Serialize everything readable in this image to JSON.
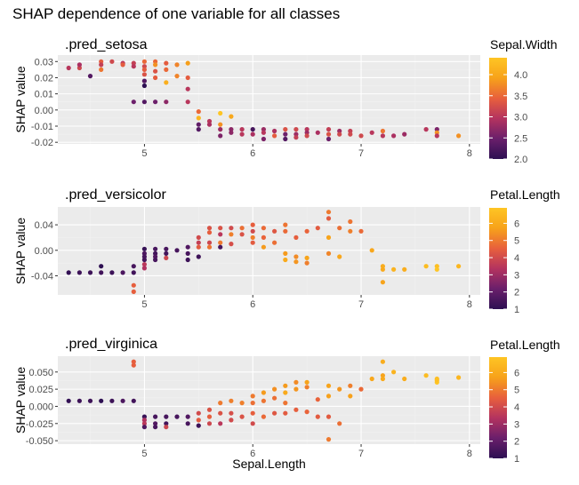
{
  "title": "SHAP dependence of one variable for all classes",
  "palette": {
    "panel_bg": "#EBEBEB",
    "grid_major": "#FFFFFF",
    "grid_minor": "#F2F2F2",
    "tick_text": "#4D4D4D",
    "scale": [
      "#2D0F52",
      "#6A1F6B",
      "#B4335F",
      "#E8603C",
      "#F7A21A",
      "#FEC524"
    ]
  },
  "chart_data": [
    {
      "type": "scatter",
      "title": ".pred_setosa",
      "xlabel": "Sepal.Length",
      "ylabel": "SHAP value",
      "xlim": [
        4.2,
        8.1
      ],
      "ylim": [
        -0.021,
        0.034
      ],
      "x_ticks": [
        5,
        6,
        7,
        8
      ],
      "x_tick_labels": [
        "5",
        "6",
        "7",
        "8"
      ],
      "y_ticks": [
        -0.02,
        -0.01,
        0.0,
        0.01,
        0.02,
        0.03
      ],
      "y_tick_labels": [
        "-0.02",
        "-0.01",
        "0.00",
        "0.01",
        "0.02",
        "0.03"
      ],
      "legend": {
        "title": "Sepal.Width",
        "min": 2.0,
        "max": 4.4,
        "ticks": [
          2.0,
          2.5,
          3.0,
          3.5,
          4.0
        ],
        "tick_labels": [
          "2.0",
          "2.5",
          "3.0",
          "3.5",
          "4.0"
        ],
        "placement": "right"
      },
      "points": [
        [
          4.3,
          0.026,
          3.0
        ],
        [
          4.4,
          0.026,
          3.2
        ],
        [
          4.4,
          0.028,
          2.9
        ],
        [
          4.5,
          0.021,
          2.3
        ],
        [
          4.6,
          0.03,
          3.4
        ],
        [
          4.6,
          0.028,
          3.1
        ],
        [
          4.6,
          0.025,
          3.6
        ],
        [
          4.7,
          0.03,
          3.2
        ],
        [
          4.8,
          0.029,
          3.0
        ],
        [
          4.8,
          0.028,
          3.4
        ],
        [
          4.9,
          0.029,
          3.1
        ],
        [
          4.9,
          0.027,
          3.0
        ],
        [
          4.9,
          0.005,
          2.5
        ],
        [
          5.0,
          0.03,
          3.5
        ],
        [
          5.0,
          0.027,
          3.2
        ],
        [
          5.0,
          0.025,
          3.4
        ],
        [
          5.0,
          0.022,
          3.3
        ],
        [
          5.0,
          0.018,
          2.3
        ],
        [
          5.0,
          0.015,
          2.0
        ],
        [
          5.0,
          0.005,
          2.3
        ],
        [
          5.1,
          0.03,
          3.5
        ],
        [
          5.1,
          0.028,
          3.8
        ],
        [
          5.1,
          0.024,
          3.3
        ],
        [
          5.1,
          0.02,
          3.4
        ],
        [
          5.1,
          0.005,
          2.5
        ],
        [
          5.2,
          0.029,
          3.4
        ],
        [
          5.2,
          0.025,
          3.5
        ],
        [
          5.2,
          0.017,
          4.1
        ],
        [
          5.2,
          0.005,
          2.7
        ],
        [
          5.3,
          0.028,
          3.7
        ],
        [
          5.3,
          0.021,
          3.7
        ],
        [
          5.4,
          0.029,
          3.9
        ],
        [
          5.4,
          0.02,
          3.4
        ],
        [
          5.4,
          0.013,
          3.0
        ],
        [
          5.4,
          0.005,
          3.0
        ],
        [
          5.5,
          -0.001,
          3.5
        ],
        [
          5.5,
          -0.005,
          4.2
        ],
        [
          5.5,
          -0.009,
          2.4
        ],
        [
          5.5,
          -0.012,
          2.3
        ],
        [
          5.6,
          -0.007,
          3.0
        ],
        [
          5.6,
          -0.009,
          2.9
        ],
        [
          5.7,
          -0.002,
          4.4
        ],
        [
          5.7,
          -0.009,
          3.8
        ],
        [
          5.7,
          -0.012,
          2.8
        ],
        [
          5.7,
          -0.016,
          2.6
        ],
        [
          5.8,
          -0.004,
          4.0
        ],
        [
          5.8,
          -0.012,
          2.7
        ],
        [
          5.8,
          -0.014,
          2.7
        ],
        [
          5.9,
          -0.012,
          3.0
        ],
        [
          5.9,
          -0.015,
          3.0
        ],
        [
          6.0,
          -0.012,
          2.2
        ],
        [
          6.0,
          -0.015,
          2.9
        ],
        [
          6.1,
          -0.012,
          2.8
        ],
        [
          6.1,
          -0.014,
          3.0
        ],
        [
          6.1,
          -0.018,
          2.6
        ],
        [
          6.2,
          -0.013,
          2.9
        ],
        [
          6.2,
          -0.016,
          3.4
        ],
        [
          6.3,
          -0.012,
          3.3
        ],
        [
          6.3,
          -0.015,
          2.5
        ],
        [
          6.3,
          -0.018,
          2.3
        ],
        [
          6.4,
          -0.012,
          3.2
        ],
        [
          6.4,
          -0.015,
          2.8
        ],
        [
          6.4,
          -0.017,
          3.1
        ],
        [
          6.5,
          -0.012,
          3.0
        ],
        [
          6.5,
          -0.014,
          2.8
        ],
        [
          6.5,
          -0.016,
          3.2
        ],
        [
          6.6,
          -0.014,
          2.9
        ],
        [
          6.7,
          -0.012,
          3.1
        ],
        [
          6.7,
          -0.015,
          3.3
        ],
        [
          6.7,
          -0.018,
          2.5
        ],
        [
          6.8,
          -0.013,
          2.8
        ],
        [
          6.8,
          -0.015,
          3.2
        ],
        [
          6.9,
          -0.013,
          3.1
        ],
        [
          6.9,
          -0.015,
          3.2
        ],
        [
          7.0,
          -0.016,
          3.2
        ],
        [
          7.1,
          -0.014,
          3.0
        ],
        [
          7.2,
          -0.013,
          3.6
        ],
        [
          7.2,
          -0.016,
          3.0
        ],
        [
          7.3,
          -0.016,
          2.9
        ],
        [
          7.4,
          -0.015,
          2.8
        ],
        [
          7.6,
          -0.012,
          3.0
        ],
        [
          7.7,
          -0.012,
          2.6
        ],
        [
          7.7,
          -0.014,
          3.8
        ],
        [
          7.7,
          -0.016,
          3.0
        ],
        [
          7.9,
          -0.016,
          3.8
        ]
      ]
    },
    {
      "type": "scatter",
      "title": ".pred_versicolor",
      "xlabel": "Sepal.Length",
      "ylabel": "SHAP value",
      "xlim": [
        4.2,
        8.1
      ],
      "ylim": [
        -0.07,
        0.068
      ],
      "x_ticks": [
        5,
        6,
        7,
        8
      ],
      "x_tick_labels": [
        "5",
        "6",
        "7",
        "8"
      ],
      "y_ticks": [
        -0.04,
        0.0,
        0.04
      ],
      "y_tick_labels": [
        "-0.04",
        "0.00",
        "0.04"
      ],
      "legend": {
        "title": "Petal.Length",
        "min": 1.0,
        "max": 6.9,
        "ticks": [
          1,
          2,
          3,
          4,
          5,
          6
        ],
        "tick_labels": [
          "1",
          "2",
          "3",
          "4",
          "5",
          "6"
        ],
        "placement": "right"
      },
      "points": [
        [
          4.3,
          -0.035,
          1.1
        ],
        [
          4.4,
          -0.035,
          1.3
        ],
        [
          4.5,
          -0.035,
          1.3
        ],
        [
          4.6,
          -0.025,
          1.0
        ],
        [
          4.6,
          -0.035,
          1.4
        ],
        [
          4.7,
          -0.035,
          1.3
        ],
        [
          4.8,
          -0.035,
          1.6
        ],
        [
          4.9,
          -0.025,
          1.5
        ],
        [
          4.9,
          -0.035,
          1.4
        ],
        [
          4.9,
          -0.055,
          4.5
        ],
        [
          4.9,
          -0.065,
          4.5
        ],
        [
          5.0,
          0.002,
          1.2
        ],
        [
          5.0,
          -0.005,
          1.6
        ],
        [
          5.0,
          -0.01,
          1.5
        ],
        [
          5.0,
          -0.015,
          1.4
        ],
        [
          5.0,
          -0.022,
          3.5
        ],
        [
          5.0,
          -0.028,
          3.3
        ],
        [
          5.1,
          0.002,
          1.5
        ],
        [
          5.1,
          -0.005,
          1.4
        ],
        [
          5.1,
          -0.01,
          1.7
        ],
        [
          5.1,
          -0.015,
          1.5
        ],
        [
          5.2,
          0.002,
          1.5
        ],
        [
          5.2,
          -0.005,
          1.4
        ],
        [
          5.2,
          -0.012,
          3.9
        ],
        [
          5.3,
          0.0,
          1.5
        ],
        [
          5.4,
          0.005,
          1.7
        ],
        [
          5.4,
          -0.005,
          1.5
        ],
        [
          5.4,
          -0.015,
          1.3
        ],
        [
          5.5,
          0.02,
          4.0
        ],
        [
          5.5,
          0.012,
          3.7
        ],
        [
          5.5,
          0.005,
          4.4
        ],
        [
          5.5,
          -0.01,
          1.3
        ],
        [
          5.6,
          0.035,
          4.2
        ],
        [
          5.6,
          0.028,
          4.5
        ],
        [
          5.6,
          0.012,
          3.9
        ],
        [
          5.6,
          0.005,
          4.9
        ],
        [
          5.7,
          0.035,
          4.2
        ],
        [
          5.7,
          0.025,
          3.5
        ],
        [
          5.7,
          0.012,
          5.0
        ],
        [
          5.7,
          0.005,
          1.5
        ],
        [
          5.8,
          0.035,
          4.0
        ],
        [
          5.8,
          0.025,
          5.1
        ],
        [
          5.8,
          0.01,
          4.1
        ],
        [
          5.9,
          0.035,
          4.8
        ],
        [
          5.9,
          0.025,
          4.2
        ],
        [
          6.0,
          0.04,
          4.5
        ],
        [
          6.0,
          0.03,
          4.0
        ],
        [
          6.0,
          0.02,
          5.1
        ],
        [
          6.0,
          0.012,
          4.4
        ],
        [
          6.1,
          0.035,
          4.7
        ],
        [
          6.1,
          0.02,
          4.6
        ],
        [
          6.1,
          0.005,
          5.6
        ],
        [
          6.2,
          0.03,
          4.3
        ],
        [
          6.2,
          0.012,
          4.8
        ],
        [
          6.3,
          0.04,
          4.9
        ],
        [
          6.3,
          0.03,
          4.7
        ],
        [
          6.3,
          -0.005,
          5.6
        ],
        [
          6.3,
          -0.015,
          6.0
        ],
        [
          6.4,
          0.02,
          4.5
        ],
        [
          6.4,
          -0.01,
          5.3
        ],
        [
          6.4,
          -0.018,
          5.5
        ],
        [
          6.5,
          0.03,
          4.6
        ],
        [
          6.5,
          -0.012,
          5.8
        ],
        [
          6.5,
          -0.02,
          5.1
        ],
        [
          6.6,
          0.035,
          4.4
        ],
        [
          6.7,
          0.06,
          5.0
        ],
        [
          6.7,
          0.05,
          4.4
        ],
        [
          6.7,
          0.02,
          5.8
        ],
        [
          6.7,
          -0.005,
          5.2
        ],
        [
          6.8,
          0.035,
          4.8
        ],
        [
          6.8,
          -0.01,
          5.9
        ],
        [
          6.9,
          0.045,
          4.9
        ],
        [
          6.9,
          0.03,
          5.1
        ],
        [
          7.0,
          0.03,
          4.7
        ],
        [
          7.1,
          0.0,
          5.9
        ],
        [
          7.2,
          -0.025,
          6.1
        ],
        [
          7.2,
          -0.03,
          6.0
        ],
        [
          7.2,
          -0.05,
          5.8
        ],
        [
          7.3,
          -0.03,
          6.3
        ],
        [
          7.4,
          -0.03,
          6.1
        ],
        [
          7.6,
          -0.025,
          6.6
        ],
        [
          7.7,
          -0.025,
          6.7
        ],
        [
          7.7,
          -0.03,
          6.9
        ],
        [
          7.9,
          -0.025,
          6.4
        ]
      ]
    },
    {
      "type": "scatter",
      "title": ".pred_virginica",
      "xlabel": "Sepal.Length",
      "ylabel": "SHAP value",
      "xlim": [
        4.2,
        8.1
      ],
      "ylim": [
        -0.055,
        0.073
      ],
      "x_ticks": [
        5,
        6,
        7,
        8
      ],
      "x_tick_labels": [
        "5",
        "6",
        "7",
        "8"
      ],
      "y_ticks": [
        -0.05,
        -0.025,
        0.0,
        0.025,
        0.05
      ],
      "y_tick_labels": [
        "-0.050",
        "-0.025",
        "0.000",
        "0.025",
        "0.050"
      ],
      "legend": {
        "title": "Petal.Length",
        "min": 1.0,
        "max": 6.9,
        "ticks": [
          1,
          2,
          3,
          4,
          5,
          6
        ],
        "tick_labels": [
          "1",
          "2",
          "3",
          "4",
          "5",
          "6"
        ],
        "placement": "right"
      },
      "points": [
        [
          4.3,
          0.008,
          1.1
        ],
        [
          4.4,
          0.008,
          1.3
        ],
        [
          4.5,
          0.008,
          1.3
        ],
        [
          4.6,
          0.008,
          1.0
        ],
        [
          4.7,
          0.008,
          1.3
        ],
        [
          4.8,
          0.008,
          1.6
        ],
        [
          4.9,
          0.008,
          1.4
        ],
        [
          4.9,
          0.06,
          4.5
        ],
        [
          4.9,
          0.065,
          4.5
        ],
        [
          5.0,
          -0.015,
          1.2
        ],
        [
          5.0,
          -0.02,
          3.3
        ],
        [
          5.0,
          -0.025,
          3.5
        ],
        [
          5.0,
          -0.03,
          1.6
        ],
        [
          5.1,
          -0.015,
          1.5
        ],
        [
          5.1,
          -0.025,
          1.7
        ],
        [
          5.1,
          -0.03,
          1.5
        ],
        [
          5.2,
          -0.015,
          1.5
        ],
        [
          5.2,
          -0.025,
          1.4
        ],
        [
          5.2,
          -0.03,
          3.9
        ],
        [
          5.3,
          -0.015,
          1.5
        ],
        [
          5.4,
          -0.015,
          1.7
        ],
        [
          5.4,
          -0.025,
          1.5
        ],
        [
          5.5,
          -0.01,
          4.0
        ],
        [
          5.5,
          -0.02,
          4.4
        ],
        [
          5.5,
          -0.028,
          1.3
        ],
        [
          5.6,
          -0.005,
          4.2
        ],
        [
          5.6,
          -0.015,
          4.5
        ],
        [
          5.6,
          -0.025,
          3.9
        ],
        [
          5.7,
          0.005,
          5.0
        ],
        [
          5.7,
          -0.01,
          4.2
        ],
        [
          5.7,
          -0.025,
          3.5
        ],
        [
          5.8,
          0.008,
          5.1
        ],
        [
          5.8,
          -0.01,
          4.1
        ],
        [
          5.8,
          -0.02,
          4.0
        ],
        [
          5.9,
          0.005,
          5.1
        ],
        [
          5.9,
          -0.015,
          4.2
        ],
        [
          6.0,
          0.015,
          5.0
        ],
        [
          6.0,
          0.005,
          4.8
        ],
        [
          6.0,
          -0.01,
          4.5
        ],
        [
          6.0,
          -0.025,
          4.0
        ],
        [
          6.1,
          0.02,
          5.6
        ],
        [
          6.1,
          0.008,
          4.9
        ],
        [
          6.1,
          -0.015,
          4.7
        ],
        [
          6.2,
          0.025,
          5.4
        ],
        [
          6.2,
          0.012,
          4.8
        ],
        [
          6.2,
          -0.01,
          4.3
        ],
        [
          6.3,
          0.03,
          5.6
        ],
        [
          6.3,
          0.02,
          6.0
        ],
        [
          6.3,
          0.005,
          4.9
        ],
        [
          6.3,
          -0.01,
          4.4
        ],
        [
          6.4,
          0.035,
          5.3
        ],
        [
          6.4,
          0.025,
          5.5
        ],
        [
          6.4,
          -0.005,
          4.5
        ],
        [
          6.5,
          0.035,
          5.8
        ],
        [
          6.5,
          0.028,
          5.1
        ],
        [
          6.5,
          -0.008,
          4.6
        ],
        [
          6.6,
          0.01,
          4.6
        ],
        [
          6.6,
          -0.015,
          4.4
        ],
        [
          6.7,
          0.03,
          5.8
        ],
        [
          6.7,
          0.015,
          5.7
        ],
        [
          6.7,
          -0.015,
          4.4
        ],
        [
          6.7,
          -0.048,
          5.0
        ],
        [
          6.8,
          0.025,
          5.5
        ],
        [
          6.8,
          -0.025,
          4.8
        ],
        [
          6.9,
          0.03,
          5.1
        ],
        [
          6.9,
          0.015,
          5.7
        ],
        [
          7.0,
          0.025,
          4.7
        ],
        [
          7.1,
          0.04,
          5.9
        ],
        [
          7.2,
          0.065,
          6.1
        ],
        [
          7.2,
          0.045,
          5.8
        ],
        [
          7.2,
          0.04,
          6.0
        ],
        [
          7.3,
          0.05,
          6.3
        ],
        [
          7.4,
          0.04,
          6.1
        ],
        [
          7.6,
          0.045,
          6.6
        ],
        [
          7.7,
          0.04,
          6.7
        ],
        [
          7.7,
          0.035,
          6.9
        ],
        [
          7.7,
          0.038,
          6.7
        ],
        [
          7.9,
          0.042,
          6.4
        ]
      ]
    }
  ]
}
